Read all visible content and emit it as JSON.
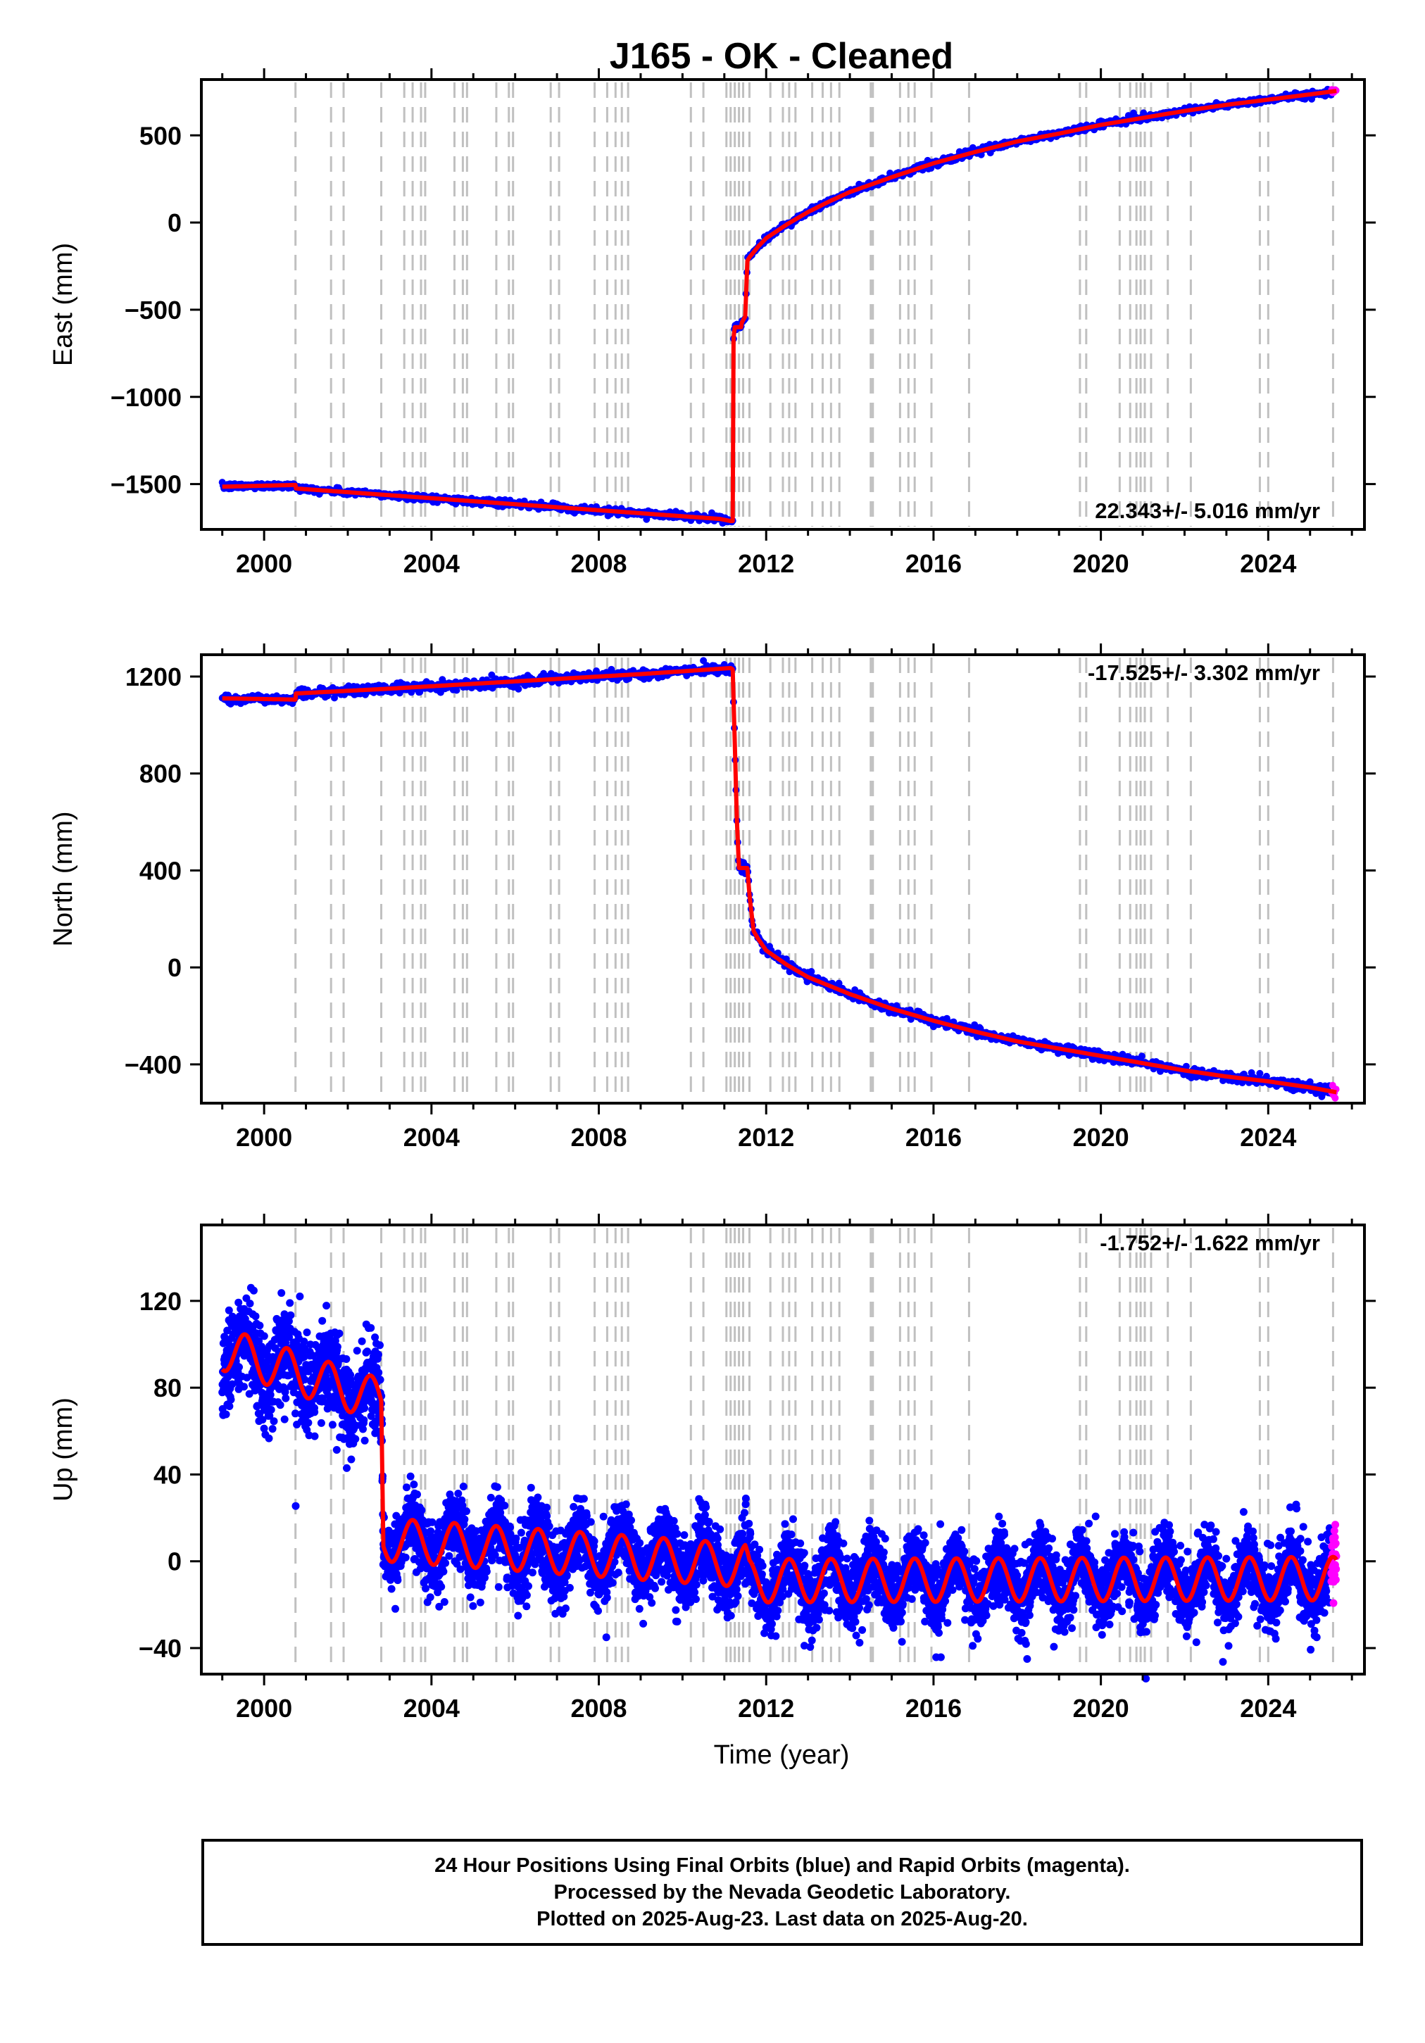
{
  "chart_data": {
    "title": "J165  - OK - Cleaned",
    "xlabel": "Time (year)",
    "x_ticks": [
      "2000",
      "2004",
      "2008",
      "2012",
      "2016",
      "2020",
      "2024"
    ],
    "xlim": [
      1998.5,
      2026.3
    ],
    "offset_lines": [
      2000.75,
      2001.6,
      2001.9,
      2002.8,
      2003.35,
      2003.55,
      2003.75,
      2003.85,
      2004.55,
      2004.75,
      2004.85,
      2005.55,
      2005.85,
      2005.95,
      2006.85,
      2007.05,
      2007.9,
      2008.2,
      2008.4,
      2008.55,
      2008.7,
      2010.2,
      2010.5,
      2011.05,
      2011.15,
      2011.25,
      2011.35,
      2011.45,
      2011.6,
      2012.1,
      2012.4,
      2012.55,
      2012.7,
      2013.1,
      2013.35,
      2013.55,
      2013.75,
      2014.5,
      2014.55,
      2015.2,
      2015.4,
      2015.55,
      2015.95,
      2016.85,
      2019.5,
      2019.65,
      2020.45,
      2020.7,
      2020.85,
      2020.95,
      2021.05,
      2021.2,
      2021.6,
      2022.15,
      2023.8,
      2024.0,
      2025.55
    ],
    "last_data_year": 2025.63,
    "series": [
      {
        "ylabel": "East (mm)",
        "ylim": [
          -1760,
          820
        ],
        "y_ticks": [
          500,
          0,
          -500,
          -1000,
          -1500
        ],
        "y_tick_labels": [
          "500",
          "0",
          "−500",
          "−1000",
          "−1500"
        ],
        "rate_text": "22.343+/- 5.016 mm/yr",
        "rate_position": "bottom-right",
        "noise": 9,
        "model_points": [
          [
            1999.0,
            -1515
          ],
          [
            2000.75,
            -1505
          ],
          [
            2000.75,
            -1525
          ],
          [
            2010.9,
            -1700
          ],
          [
            2011.15,
            -1712
          ],
          [
            2011.2,
            -1712
          ],
          [
            2011.2,
            -700
          ],
          [
            2011.25,
            -600
          ],
          [
            2011.4,
            -600
          ],
          [
            2011.4,
            -580
          ],
          [
            2011.5,
            -540
          ],
          [
            2011.55,
            -220
          ],
          [
            2011.6,
            -200
          ],
          [
            2011.8,
            -140
          ],
          [
            2012.0,
            -90
          ],
          [
            2012.5,
            -10
          ],
          [
            2013.0,
            60
          ],
          [
            2013.5,
            120
          ],
          [
            2014.0,
            175
          ],
          [
            2015.0,
            260
          ],
          [
            2016.0,
            340
          ],
          [
            2017.0,
            405
          ],
          [
            2018.0,
            465
          ],
          [
            2019.0,
            510
          ],
          [
            2020.0,
            560
          ],
          [
            2021.0,
            600
          ],
          [
            2022.0,
            640
          ],
          [
            2023.0,
            675
          ],
          [
            2024.0,
            705
          ],
          [
            2025.0,
            735
          ],
          [
            2025.63,
            755
          ]
        ]
      },
      {
        "ylabel": "North (mm)",
        "ylim": [
          -560,
          1290
        ],
        "y_ticks": [
          1200,
          800,
          400,
          0,
          -400
        ],
        "y_tick_labels": [
          "1200",
          "800",
          "400",
          "0",
          "−400"
        ],
        "rate_text": "-17.525+/- 3.302 mm/yr",
        "rate_position": "top-right",
        "noise": 10,
        "model_points": [
          [
            1999.0,
            1110
          ],
          [
            2000.75,
            1105
          ],
          [
            2000.75,
            1130
          ],
          [
            2003.0,
            1150
          ],
          [
            2006.0,
            1180
          ],
          [
            2009.0,
            1210
          ],
          [
            2011.15,
            1235
          ],
          [
            2011.2,
            1230
          ],
          [
            2011.3,
            610
          ],
          [
            2011.35,
            410
          ],
          [
            2011.55,
            410
          ],
          [
            2011.6,
            300
          ],
          [
            2011.7,
            150
          ],
          [
            2011.8,
            120
          ],
          [
            2012.0,
            70
          ],
          [
            2012.5,
            10
          ],
          [
            2013.0,
            -40
          ],
          [
            2014.0,
            -110
          ],
          [
            2015.0,
            -170
          ],
          [
            2016.0,
            -220
          ],
          [
            2017.0,
            -265
          ],
          [
            2018.0,
            -305
          ],
          [
            2019.0,
            -335
          ],
          [
            2020.0,
            -365
          ],
          [
            2021.0,
            -395
          ],
          [
            2022.0,
            -425
          ],
          [
            2023.0,
            -450
          ],
          [
            2024.0,
            -470
          ],
          [
            2025.0,
            -495
          ],
          [
            2025.63,
            -515
          ]
        ]
      },
      {
        "ylabel": "Up (mm)",
        "ylim": [
          -52,
          155
        ],
        "y_ticks": [
          120,
          80,
          40,
          0,
          -40
        ],
        "y_tick_labels": [
          "120",
          "80",
          "40",
          "0",
          "−40"
        ],
        "rate_text": "-1.752+/- 1.622 mm/yr",
        "rate_position": "top-right",
        "noise": 8,
        "seasonal_amplitude": 10,
        "model_points": [
          [
            1999.0,
            98
          ],
          [
            2002.8,
            74
          ],
          [
            2002.85,
            10
          ],
          [
            2011.5,
            -2
          ],
          [
            2011.6,
            -9
          ],
          [
            2025.63,
            -8
          ]
        ]
      }
    ]
  },
  "footer": {
    "line1": "24 Hour Positions Using Final Orbits (blue) and Rapid Orbits (magenta).",
    "line2": "Processed by the Nevada Geodetic Laboratory.",
    "line3": "Plotted on 2025-Aug-23. Last data on 2025-Aug-20."
  },
  "colors": {
    "final_orbits": "#0000ff",
    "rapid_orbits": "#ff00ff",
    "model": "#ff0000",
    "offset_lines": "#c0c0c0",
    "frame": "#000000"
  }
}
